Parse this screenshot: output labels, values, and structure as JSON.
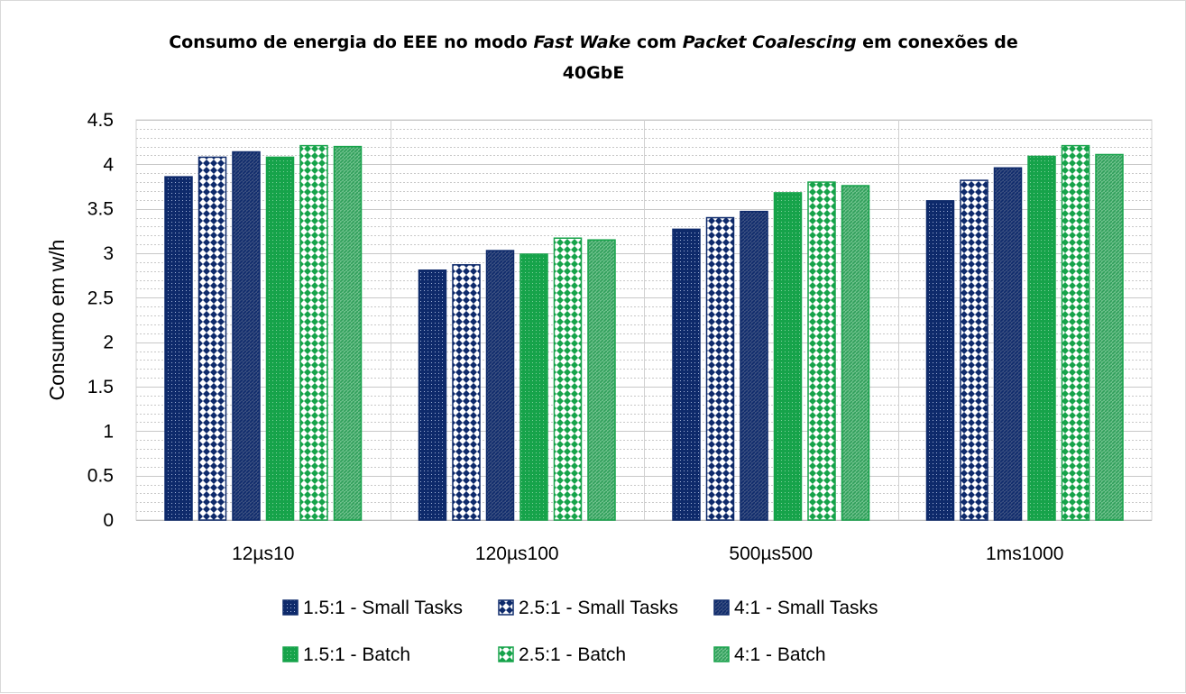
{
  "chart_data": {
    "type": "bar",
    "title": {
      "part1": "Consumo de energia do EEE no modo ",
      "italic1": "Fast Wake",
      "part2": " com ",
      "italic2": "Packet Coalescing",
      "part3": " em conexões de",
      "line2": "40GbE"
    },
    "xlabel": "",
    "ylabel": "Consumo em w/h",
    "ylim": [
      0,
      4.5
    ],
    "yticks": [
      "0",
      "0.5",
      "1",
      "1.5",
      "2",
      "2.5",
      "3",
      "3.5",
      "4",
      "4.5"
    ],
    "grid": "major and minor horizontal, vertical category separators",
    "legend_position": "bottom",
    "categories": [
      "12µs10",
      "120µs100",
      "500µs500",
      "1ms1000"
    ],
    "series": [
      {
        "name": "1.5:1 - Small Tasks",
        "color": "#0e2a6b",
        "pattern": "fine-dots",
        "values": [
          3.86,
          2.81,
          3.27,
          3.59
        ]
      },
      {
        "name": "2.5:1 - Small Tasks",
        "color": "#0e2a6b",
        "pattern": "diamonds",
        "values": [
          4.08,
          2.87,
          3.4,
          3.82
        ]
      },
      {
        "name": "4:1 - Small Tasks",
        "color": "#0e2a6b",
        "pattern": "diagonal",
        "values": [
          4.14,
          3.03,
          3.47,
          3.96
        ]
      },
      {
        "name": "1.5:1 - Batch",
        "color": "#16a34a",
        "pattern": "fine-dots",
        "values": [
          4.08,
          2.99,
          3.68,
          4.09
        ]
      },
      {
        "name": "2.5:1 - Batch",
        "color": "#16a34a",
        "pattern": "diamonds",
        "values": [
          4.21,
          3.17,
          3.8,
          4.21
        ]
      },
      {
        "name": "4:1 - Batch",
        "color": "#16a34a",
        "pattern": "diagonal",
        "values": [
          4.2,
          3.15,
          3.76,
          4.11
        ]
      }
    ]
  }
}
